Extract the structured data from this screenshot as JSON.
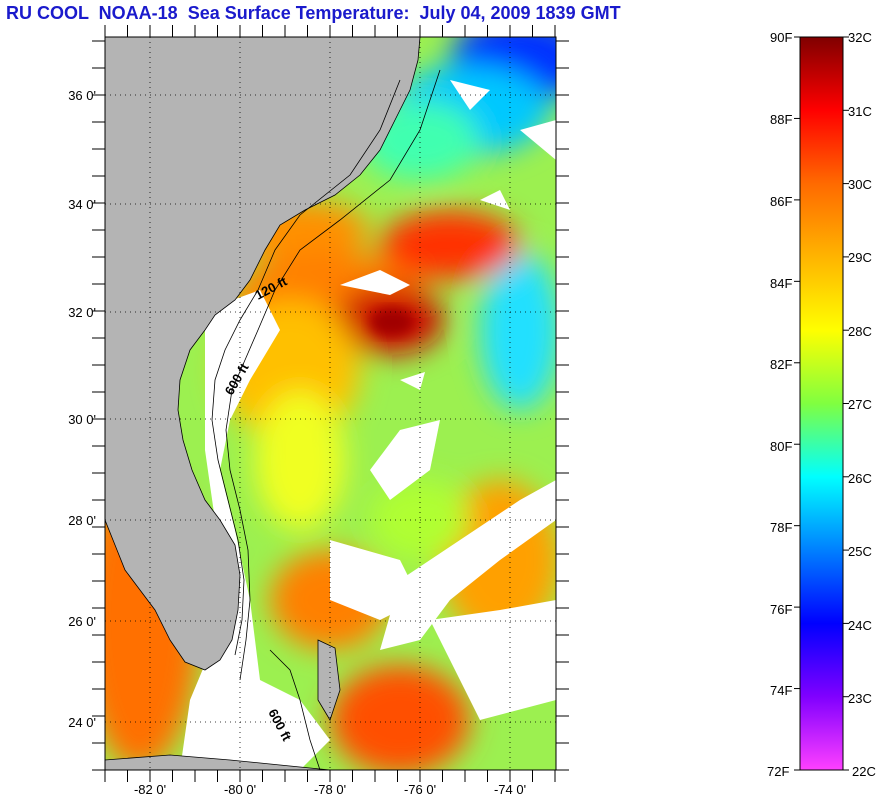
{
  "title": "RU COOL  NOAA-18  Sea Surface Temperature:  July 04, 2009 1839 GMT",
  "map": {
    "lat_labels": [
      "36 0'",
      "34 0'",
      "32 0'",
      "30 0'",
      "28 0'",
      "26 0'",
      "24 0'"
    ],
    "lon_labels": [
      "-82 0'",
      "-80 0'",
      "-78 0'",
      "-76 0'",
      "-74 0'"
    ],
    "contour_labels": [
      "120 ft",
      "600 ft",
      "600 ft"
    ],
    "land_color": "#b4b4b4",
    "cloud_color": "#ffffff"
  },
  "colorbar": {
    "f_labels": [
      "90F",
      "88F",
      "86F",
      "84F",
      "82F",
      "80F",
      "78F",
      "76F",
      "74F",
      "72F"
    ],
    "c_labels": [
      "32C",
      "31C",
      "30C",
      "29C",
      "28C",
      "27C",
      "26C",
      "25C",
      "24C",
      "23C",
      "22C"
    ],
    "colors": [
      "#800000",
      "#ff0000",
      "#ff6a00",
      "#ffb400",
      "#ffff00",
      "#80ff40",
      "#00ffff",
      "#0080ff",
      "#0000ff",
      "#8000ff",
      "#ff40ff"
    ]
  }
}
